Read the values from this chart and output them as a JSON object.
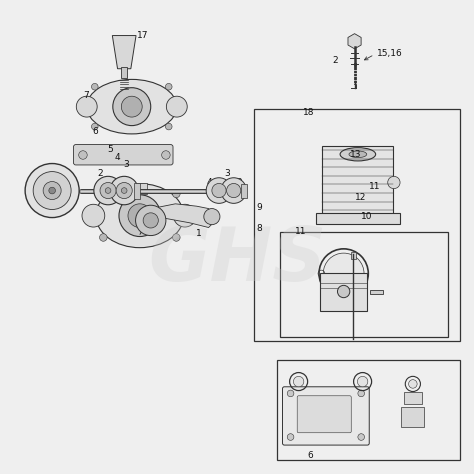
{
  "bg_color": "#efefef",
  "line_color": "#333333",
  "text_color": "#111111",
  "watermark_color": "#cccccc",
  "watermark_text": "GHS"
}
